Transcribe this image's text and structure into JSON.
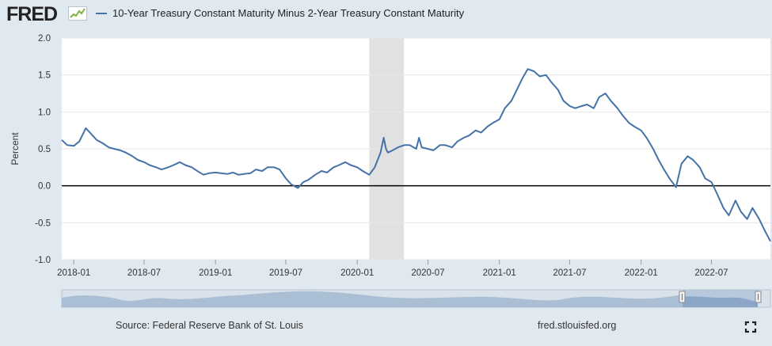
{
  "header": {
    "logo_text": "FRED",
    "legend_label": "10-Year Treasury Constant Maturity Minus 2-Year Treasury Constant Maturity"
  },
  "footer": {
    "source": "Source: Federal Reserve Bank of St. Louis",
    "url": "fred.stlouisfed.org"
  },
  "colors": {
    "series": "#4572a7",
    "recession": "#e1e1e1",
    "background": "#e1e9f0",
    "plot_bg": "#ffffff"
  },
  "chart_data": {
    "type": "line",
    "title": "10-Year Treasury Constant Maturity Minus 2-Year Treasury Constant Maturity",
    "ylabel": "Percent",
    "xlabel": "",
    "ylim": [
      -1.0,
      2.0
    ],
    "yticks": [
      {
        "value": 2.0,
        "label": "2.0"
      },
      {
        "value": 1.5,
        "label": "1.5"
      },
      {
        "value": 1.0,
        "label": "1.0"
      },
      {
        "value": 0.5,
        "label": "0.5"
      },
      {
        "value": 0.0,
        "label": "0.0"
      },
      {
        "value": -0.5,
        "label": "-0.5"
      },
      {
        "value": -1.0,
        "label": "-1.0"
      }
    ],
    "xlim": [
      "2017-12-01",
      "2022-11-30"
    ],
    "xticks": [
      {
        "date": "2018-01-01",
        "label": "2018-01"
      },
      {
        "date": "2018-07-01",
        "label": "2018-07"
      },
      {
        "date": "2019-01-01",
        "label": "2019-01"
      },
      {
        "date": "2019-07-01",
        "label": "2019-07"
      },
      {
        "date": "2020-01-01",
        "label": "2020-01"
      },
      {
        "date": "2020-07-01",
        "label": "2020-07"
      },
      {
        "date": "2021-01-01",
        "label": "2021-01"
      },
      {
        "date": "2021-07-01",
        "label": "2021-07"
      },
      {
        "date": "2022-01-01",
        "label": "2022-01"
      },
      {
        "date": "2022-07-01",
        "label": "2022-07"
      }
    ],
    "recession": {
      "start": "2020-02-01",
      "end": "2020-04-30"
    },
    "series": [
      {
        "name": "10-Year Treasury Constant Maturity Minus 2-Year Treasury Constant Maturity",
        "x": [
          "2017-12-01",
          "2017-12-15",
          "2018-01-01",
          "2018-01-15",
          "2018-02-01",
          "2018-02-15",
          "2018-03-01",
          "2018-03-15",
          "2018-04-01",
          "2018-04-15",
          "2018-05-01",
          "2018-05-15",
          "2018-06-01",
          "2018-06-15",
          "2018-07-01",
          "2018-07-15",
          "2018-08-01",
          "2018-08-15",
          "2018-09-01",
          "2018-09-15",
          "2018-10-01",
          "2018-10-15",
          "2018-11-01",
          "2018-11-15",
          "2018-12-01",
          "2018-12-15",
          "2019-01-01",
          "2019-01-15",
          "2019-02-01",
          "2019-02-15",
          "2019-03-01",
          "2019-03-15",
          "2019-04-01",
          "2019-04-15",
          "2019-05-01",
          "2019-05-15",
          "2019-06-01",
          "2019-06-15",
          "2019-07-01",
          "2019-07-15",
          "2019-08-01",
          "2019-08-15",
          "2019-08-28",
          "2019-09-15",
          "2019-10-01",
          "2019-10-15",
          "2019-11-01",
          "2019-11-15",
          "2019-12-01",
          "2019-12-15",
          "2020-01-01",
          "2020-01-15",
          "2020-02-01",
          "2020-02-15",
          "2020-03-01",
          "2020-03-09",
          "2020-03-15",
          "2020-03-20",
          "2020-04-01",
          "2020-04-15",
          "2020-05-01",
          "2020-05-15",
          "2020-06-01",
          "2020-06-08",
          "2020-06-15",
          "2020-07-01",
          "2020-07-15",
          "2020-08-01",
          "2020-08-15",
          "2020-09-01",
          "2020-09-15",
          "2020-10-01",
          "2020-10-15",
          "2020-11-01",
          "2020-11-15",
          "2020-12-01",
          "2020-12-15",
          "2021-01-01",
          "2021-01-15",
          "2021-02-01",
          "2021-02-15",
          "2021-03-01",
          "2021-03-15",
          "2021-03-31",
          "2021-04-15",
          "2021-05-01",
          "2021-05-15",
          "2021-06-01",
          "2021-06-15",
          "2021-07-01",
          "2021-07-15",
          "2021-08-01",
          "2021-08-15",
          "2021-09-01",
          "2021-09-15",
          "2021-10-01",
          "2021-10-15",
          "2021-11-01",
          "2021-11-15",
          "2021-12-01",
          "2021-12-15",
          "2022-01-01",
          "2022-01-15",
          "2022-02-01",
          "2022-02-15",
          "2022-03-01",
          "2022-03-15",
          "2022-04-01",
          "2022-04-15",
          "2022-05-01",
          "2022-05-15",
          "2022-06-01",
          "2022-06-15",
          "2022-07-01",
          "2022-07-15",
          "2022-08-01",
          "2022-08-15",
          "2022-09-01",
          "2022-09-15",
          "2022-10-01",
          "2022-10-15",
          "2022-11-01",
          "2022-11-15",
          "2022-11-30"
        ],
        "values": [
          0.62,
          0.55,
          0.54,
          0.6,
          0.78,
          0.7,
          0.62,
          0.58,
          0.52,
          0.5,
          0.48,
          0.45,
          0.4,
          0.35,
          0.32,
          0.28,
          0.25,
          0.22,
          0.25,
          0.28,
          0.32,
          0.28,
          0.25,
          0.2,
          0.15,
          0.17,
          0.18,
          0.17,
          0.16,
          0.18,
          0.15,
          0.16,
          0.17,
          0.22,
          0.2,
          0.25,
          0.25,
          0.22,
          0.1,
          0.02,
          -0.03,
          0.05,
          0.08,
          0.15,
          0.2,
          0.18,
          0.25,
          0.28,
          0.32,
          0.28,
          0.25,
          0.2,
          0.15,
          0.25,
          0.45,
          0.65,
          0.5,
          0.45,
          0.48,
          0.52,
          0.55,
          0.55,
          0.5,
          0.65,
          0.52,
          0.5,
          0.48,
          0.55,
          0.55,
          0.52,
          0.6,
          0.65,
          0.68,
          0.75,
          0.72,
          0.8,
          0.85,
          0.9,
          1.05,
          1.15,
          1.3,
          1.45,
          1.58,
          1.55,
          1.48,
          1.5,
          1.4,
          1.3,
          1.15,
          1.08,
          1.05,
          1.08,
          1.1,
          1.05,
          1.2,
          1.25,
          1.15,
          1.05,
          0.95,
          0.85,
          0.8,
          0.75,
          0.65,
          0.5,
          0.35,
          0.22,
          0.1,
          -0.02,
          0.3,
          0.4,
          0.35,
          0.25,
          0.1,
          0.05,
          -0.1,
          -0.3,
          -0.4,
          -0.2,
          -0.35,
          -0.45,
          -0.3,
          -0.45,
          -0.6,
          -0.75
        ]
      }
    ]
  }
}
